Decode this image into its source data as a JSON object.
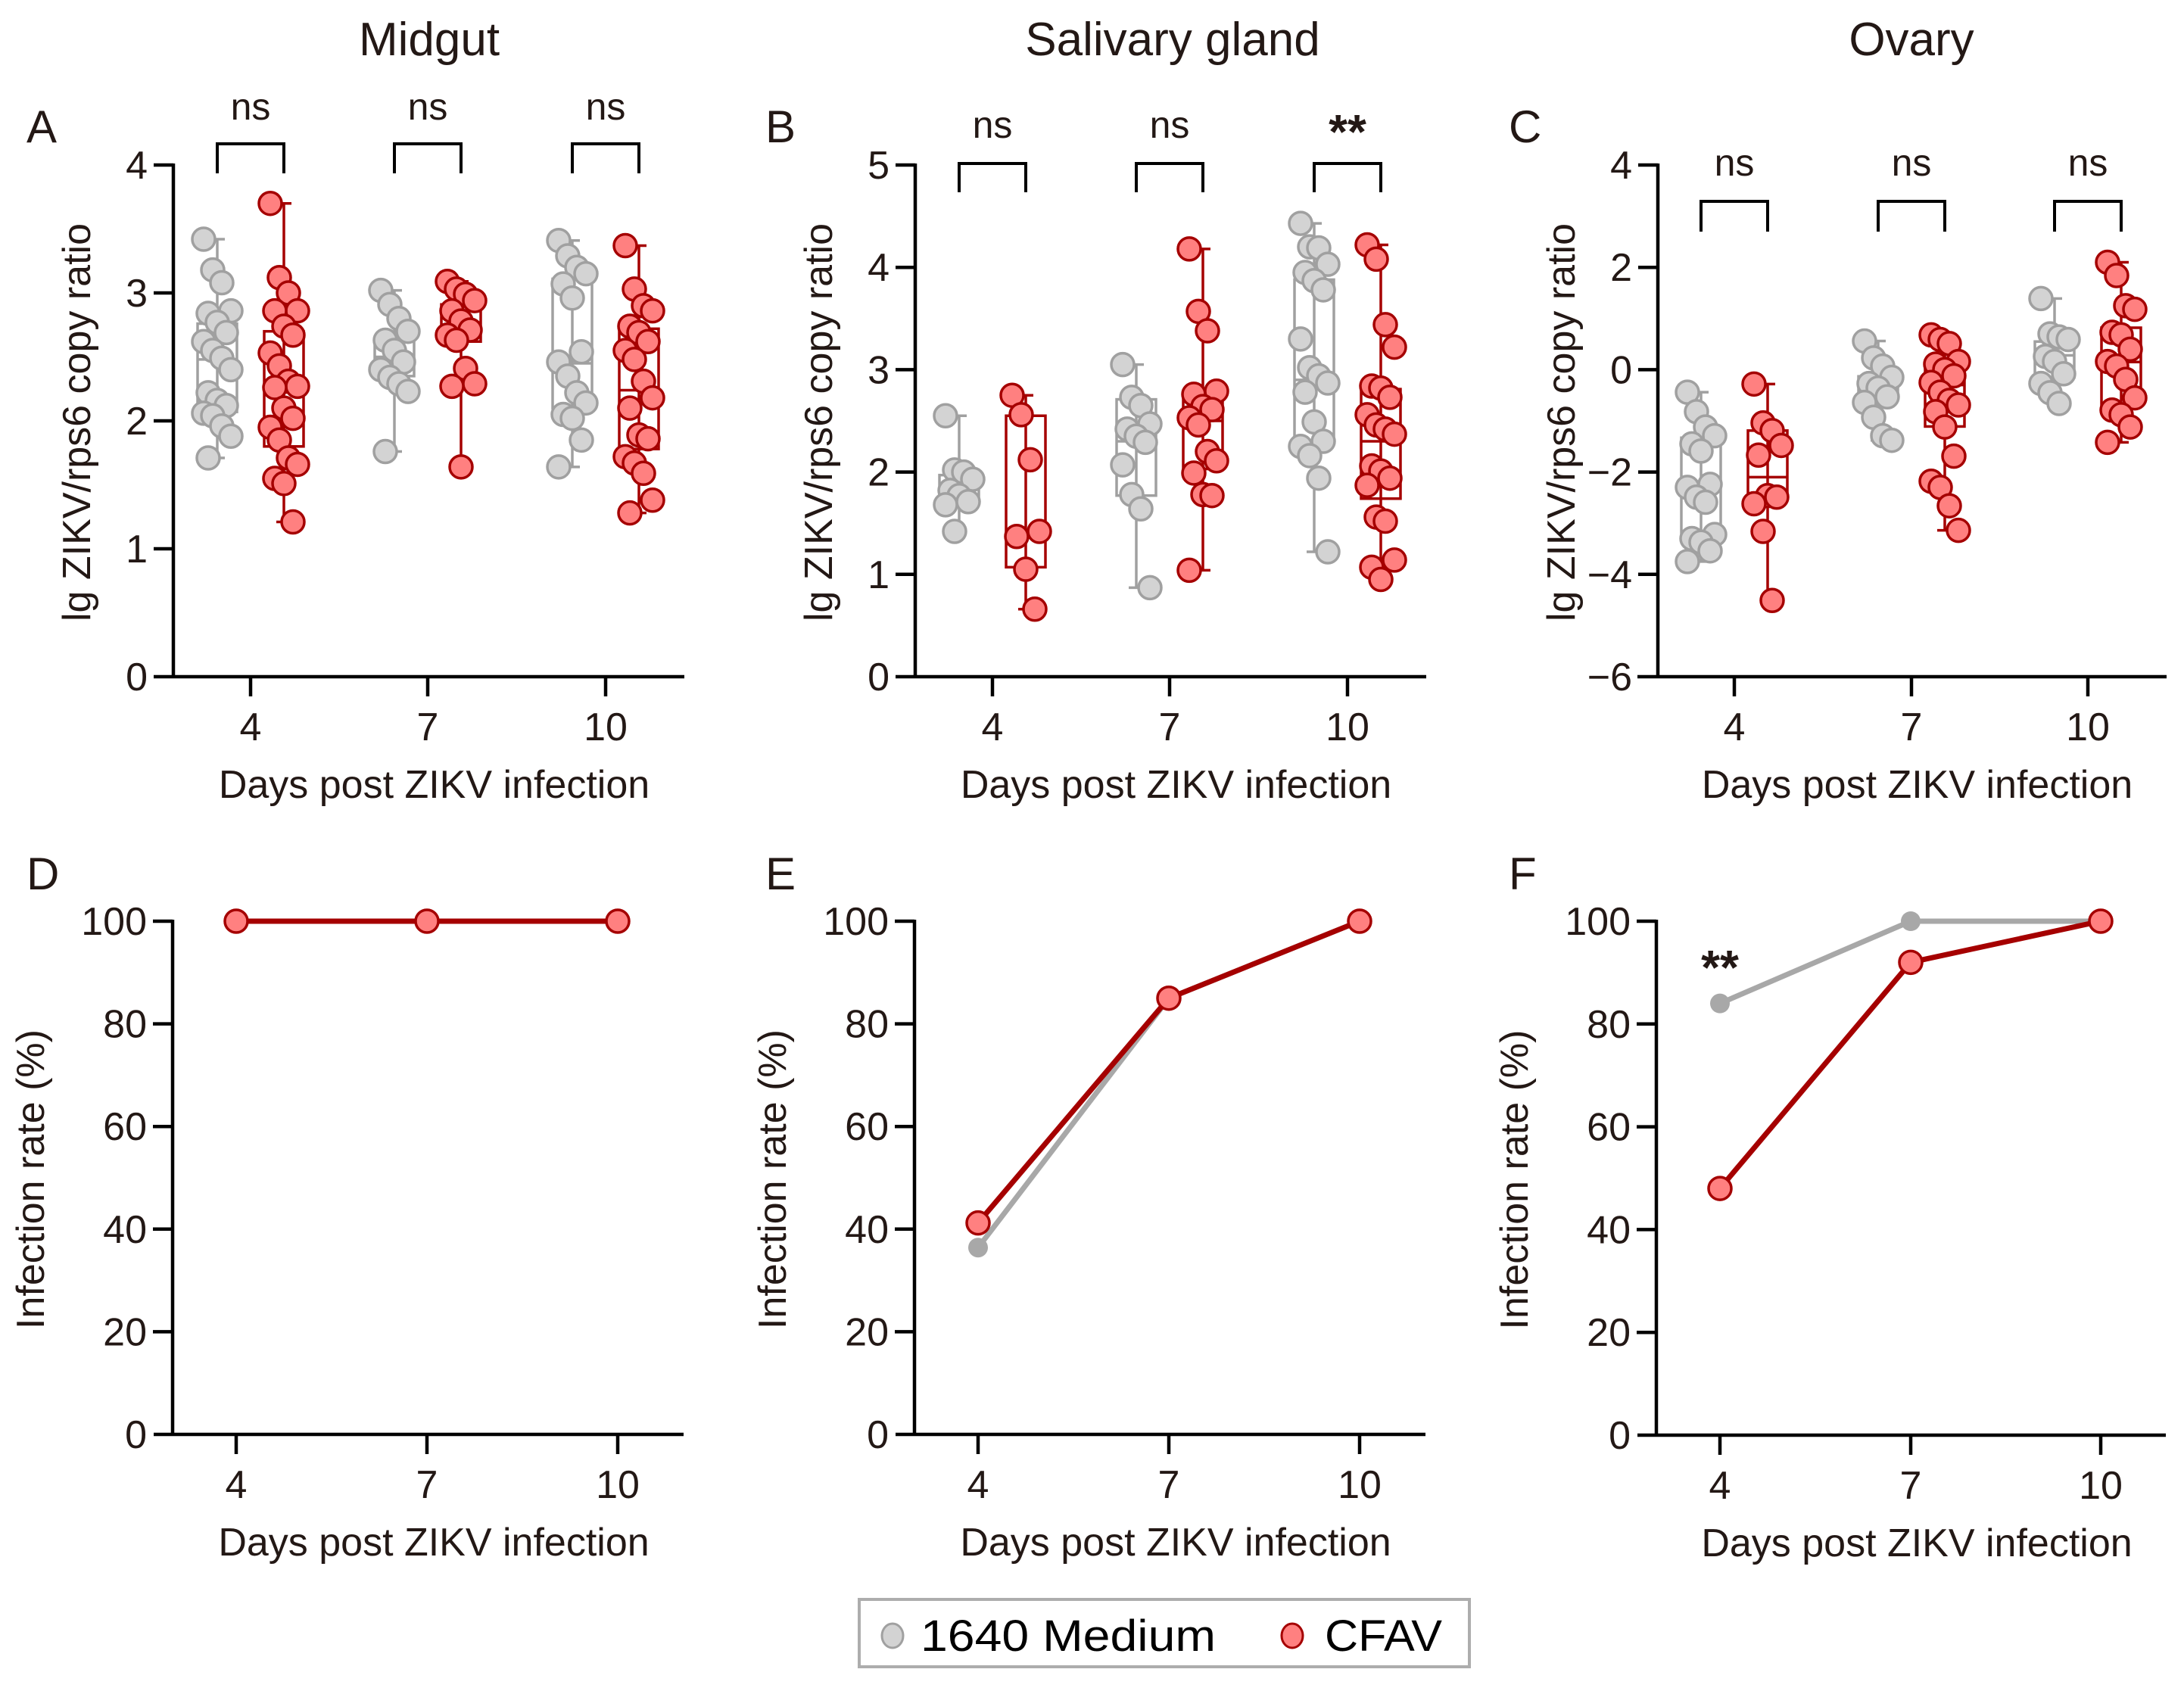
{
  "colors": {
    "medium_fill": "#d3d3d3",
    "medium_stroke": "#a0a0a0",
    "medium_line": "#a8a8a8",
    "cfav_fill": "#ff8080",
    "cfav_stroke": "#a50000",
    "cfav_line": "#a50000"
  },
  "legend": {
    "items": [
      {
        "label": "1640 Medium",
        "series": "medium"
      },
      {
        "label": "CFAV",
        "series": "cfav"
      }
    ]
  },
  "column_titles": [
    "Midgut",
    "Salivary gland",
    "Ovary"
  ],
  "chart_data": [
    {
      "panel": "A",
      "title": "Midgut",
      "type": "box",
      "xlabel": "Days post ZIKV infection",
      "ylabel": "lg ZIKV/rps6 copy ratio",
      "categories": [
        "4",
        "7",
        "10"
      ],
      "ylim": [
        0,
        4
      ],
      "yticks": [
        0,
        1,
        2,
        3,
        4
      ],
      "significance": [
        "ns",
        "ns",
        "ns"
      ],
      "series": [
        {
          "name": "1640 Medium",
          "key": "medium",
          "groups": [
            {
              "q1": 2.07,
              "median": 2.48,
              "q3": 2.76,
              "min": 1.71,
              "max": 3.42,
              "points": [
                3.42,
                3.18,
                3.08,
                2.86,
                2.84,
                2.77,
                2.69,
                2.62,
                2.55,
                2.49,
                2.4,
                2.22,
                2.16,
                2.12,
                2.06,
                2.04,
                1.96,
                1.88,
                1.71
              ]
            },
            {
              "q1": 2.35,
              "median": 2.5,
              "q3": 2.65,
              "min": 1.76,
              "max": 3.02,
              "points": [
                3.02,
                2.91,
                2.8,
                2.7,
                2.63,
                2.55,
                2.46,
                2.4,
                2.34,
                2.29,
                2.23,
                1.76
              ]
            },
            {
              "q1": 2.1,
              "median": 2.45,
              "q3": 3.11,
              "min": 1.64,
              "max": 3.41,
              "points": [
                3.41,
                3.29,
                3.2,
                3.15,
                3.07,
                2.96,
                2.54,
                2.46,
                2.35,
                2.22,
                2.14,
                2.05,
                2.02,
                1.85,
                1.64
              ]
            }
          ]
        },
        {
          "name": "CFAV",
          "key": "cfav",
          "groups": [
            {
              "q1": 1.8,
              "median": 2.28,
              "q3": 2.7,
              "min": 1.21,
              "max": 3.7,
              "points": [
                3.7,
                3.12,
                3.0,
                2.86,
                2.86,
                2.74,
                2.67,
                2.53,
                2.43,
                2.31,
                2.27,
                2.26,
                2.1,
                2.02,
                1.95,
                1.85,
                1.71,
                1.66,
                1.55,
                1.51,
                1.21
              ]
            },
            {
              "q1": 2.62,
              "median": 2.75,
              "q3": 2.91,
              "min": 1.64,
              "max": 3.09,
              "points": [
                3.09,
                3.03,
                2.99,
                2.94,
                2.86,
                2.78,
                2.71,
                2.67,
                2.63,
                2.41,
                2.29,
                2.27,
                1.64
              ]
            },
            {
              "q1": 1.78,
              "median": 2.24,
              "q3": 2.72,
              "min": 1.28,
              "max": 3.37,
              "points": [
                3.37,
                3.03,
                2.9,
                2.86,
                2.74,
                2.69,
                2.62,
                2.55,
                2.48,
                2.31,
                2.18,
                2.1,
                1.89,
                1.86,
                1.72,
                1.67,
                1.59,
                1.38,
                1.28
              ]
            }
          ]
        }
      ]
    },
    {
      "panel": "B",
      "title": "Salivary gland",
      "type": "box",
      "xlabel": "Days post ZIKV infection",
      "ylabel": "lg ZIKV/rps6 copy ratio",
      "categories": [
        "4",
        "7",
        "10"
      ],
      "ylim": [
        0,
        5
      ],
      "yticks": [
        0,
        1,
        2,
        3,
        4,
        5
      ],
      "significance": [
        "ns",
        "ns",
        "**"
      ],
      "series": [
        {
          "name": "1640 Medium",
          "key": "medium",
          "groups": [
            {
              "q1": 1.72,
              "median": 1.85,
              "q3": 1.97,
              "min": 1.42,
              "max": 2.55,
              "points": [
                2.55,
                2.02,
                2.0,
                1.93,
                1.82,
                1.77,
                1.71,
                1.68,
                1.42
              ]
            },
            {
              "q1": 1.77,
              "median": 2.3,
              "q3": 2.71,
              "min": 0.87,
              "max": 3.05,
              "points": [
                3.05,
                2.73,
                2.65,
                2.47,
                2.42,
                2.35,
                2.29,
                2.07,
                1.78,
                1.64,
                0.87
              ]
            },
            {
              "q1": 2.31,
              "median": 2.9,
              "q3": 3.88,
              "min": 1.22,
              "max": 4.43,
              "points": [
                4.43,
                4.2,
                4.19,
                4.03,
                3.95,
                3.87,
                3.78,
                3.3,
                3.02,
                2.94,
                2.87,
                2.78,
                2.49,
                2.3,
                2.25,
                2.16,
                1.94,
                1.22
              ]
            }
          ]
        },
        {
          "name": "CFAV",
          "key": "cfav",
          "groups": [
            {
              "q1": 1.07,
              "median": 1.4,
              "q3": 2.55,
              "min": 0.66,
              "max": 2.75,
              "points": [
                2.75,
                2.56,
                2.12,
                1.42,
                1.37,
                1.05,
                0.66
              ]
            },
            {
              "q1": 2.03,
              "median": 2.5,
              "q3": 2.78,
              "min": 1.04,
              "max": 4.18,
              "points": [
                4.18,
                3.57,
                3.38,
                2.79,
                2.76,
                2.64,
                2.61,
                2.53,
                2.46,
                2.2,
                2.11,
                1.99,
                1.78,
                1.77,
                1.04
              ]
            },
            {
              "q1": 1.74,
              "median": 2.3,
              "q3": 2.81,
              "min": 0.95,
              "max": 4.22,
              "points": [
                4.22,
                4.08,
                3.44,
                3.22,
                2.84,
                2.82,
                2.73,
                2.56,
                2.46,
                2.42,
                2.37,
                2.06,
                2.01,
                1.94,
                1.87,
                1.56,
                1.52,
                1.14,
                1.07,
                0.95
              ]
            }
          ]
        }
      ]
    },
    {
      "panel": "C",
      "title": "Ovary",
      "type": "box",
      "xlabel": "Days post ZIKV infection",
      "ylabel": "lg ZIKV/rps6 copy ratio",
      "categories": [
        "4",
        "7",
        "10"
      ],
      "ylim": [
        -6,
        4
      ],
      "yticks": [
        -6,
        -4,
        -2,
        0,
        2,
        4
      ],
      "ytick_labels": [
        "−6",
        "−4",
        "−2",
        "0",
        "2",
        "4"
      ],
      "significance": [
        "ns",
        "ns",
        "ns"
      ],
      "series": [
        {
          "name": "1640 Medium",
          "key": "medium",
          "groups": [
            {
              "q1": -3.3,
              "median": -2.27,
              "q3": -1.33,
              "min": -3.75,
              "max": -0.44,
              "points": [
                -0.44,
                -0.82,
                -1.12,
                -1.29,
                -1.45,
                -1.59,
                -2.24,
                -2.3,
                -2.49,
                -2.59,
                -3.22,
                -3.3,
                -3.37,
                -3.54,
                -3.75
              ]
            },
            {
              "q1": -0.55,
              "median": -0.33,
              "q3": -0.13,
              "min": -1.38,
              "max": 0.56,
              "points": [
                0.56,
                0.23,
                0.07,
                -0.15,
                -0.27,
                -0.36,
                -0.53,
                -0.64,
                -0.93,
                -1.29,
                -1.38
              ]
            },
            {
              "q1": -0.15,
              "median": 0.28,
              "q3": 0.55,
              "min": -0.66,
              "max": 1.39,
              "points": [
                1.39,
                0.7,
                0.64,
                0.59,
                0.26,
                0.16,
                -0.08,
                -0.27,
                -0.45,
                -0.66
              ]
            }
          ]
        },
        {
          "name": "CFAV",
          "key": "cfav",
          "groups": [
            {
              "q1": -2.42,
              "median": -2.1,
              "q3": -1.19,
              "min": -4.51,
              "max": -0.28,
              "points": [
                -0.28,
                -1.04,
                -1.19,
                -1.48,
                -1.67,
                -2.46,
                -2.49,
                -2.62,
                -3.16,
                -4.51
              ]
            },
            {
              "q1": -1.11,
              "median": -0.3,
              "q3": 0.13,
              "min": -3.14,
              "max": 0.68,
              "points": [
                0.68,
                0.59,
                0.51,
                0.16,
                0.11,
                0.0,
                -0.12,
                -0.25,
                -0.44,
                -0.6,
                -0.69,
                -0.82,
                -1.12,
                -1.69,
                -2.18,
                -2.3,
                -2.66,
                -3.14
              ]
            },
            {
              "q1": -0.7,
              "median": 0.15,
              "q3": 0.82,
              "min": -1.42,
              "max": 2.1,
              "points": [
                2.1,
                1.84,
                1.25,
                1.18,
                0.73,
                0.68,
                0.4,
                0.16,
                0.07,
                -0.19,
                -0.55,
                -0.79,
                -0.88,
                -1.12,
                -1.42
              ]
            }
          ]
        }
      ]
    },
    {
      "panel": "D",
      "type": "line",
      "xlabel": "Days post ZIKV infection",
      "ylabel": "Infection rate (%)",
      "x": [
        "4",
        "7",
        "10"
      ],
      "ylim": [
        0,
        100
      ],
      "yticks": [
        0,
        20,
        40,
        60,
        80,
        100
      ],
      "annotations": [],
      "series": [
        {
          "name": "1640 Medium",
          "key": "medium",
          "values": [
            100,
            100,
            100
          ]
        },
        {
          "name": "CFAV",
          "key": "cfav",
          "values": [
            100,
            100,
            100
          ]
        }
      ]
    },
    {
      "panel": "E",
      "type": "line",
      "xlabel": "Days post ZIKV infection",
      "ylabel": "Infection rate (%)",
      "x": [
        "4",
        "7",
        "10"
      ],
      "ylim": [
        0,
        100
      ],
      "yticks": [
        0,
        20,
        40,
        60,
        80,
        100
      ],
      "annotations": [],
      "series": [
        {
          "name": "1640 Medium",
          "key": "medium",
          "values": [
            36.4,
            85,
            100
          ]
        },
        {
          "name": "CFAV",
          "key": "cfav",
          "values": [
            41.2,
            85,
            100
          ]
        }
      ]
    },
    {
      "panel": "F",
      "type": "line",
      "xlabel": "Days post ZIKV infection",
      "ylabel": "Infection rate (%)",
      "x": [
        "4",
        "7",
        "10"
      ],
      "ylim": [
        0,
        100
      ],
      "yticks": [
        0,
        20,
        40,
        60,
        80,
        100
      ],
      "annotations": [
        {
          "text": "**",
          "x": "4",
          "y": 91
        }
      ],
      "series": [
        {
          "name": "1640 Medium",
          "key": "medium",
          "values": [
            84,
            100,
            100
          ]
        },
        {
          "name": "CFAV",
          "key": "cfav",
          "values": [
            48,
            92,
            100
          ]
        }
      ]
    }
  ]
}
